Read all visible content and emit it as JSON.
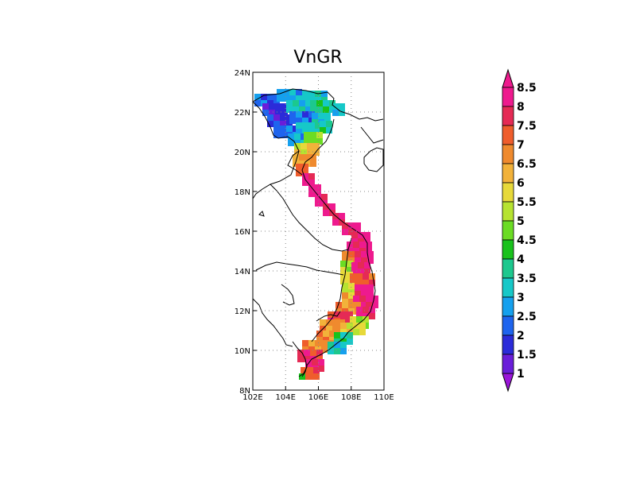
{
  "title": "VnGR",
  "map": {
    "lon_range": [
      102,
      110
    ],
    "lat_range": [
      8,
      24
    ],
    "x_ticks": [
      {
        "value": 102,
        "label": "102E"
      },
      {
        "value": 104,
        "label": "104E"
      },
      {
        "value": 106,
        "label": "106E"
      },
      {
        "value": 108,
        "label": "108E"
      },
      {
        "value": 110,
        "label": "110E"
      }
    ],
    "y_ticks": [
      {
        "value": 8,
        "label": "8N"
      },
      {
        "value": 10,
        "label": "10N"
      },
      {
        "value": 12,
        "label": "12N"
      },
      {
        "value": 14,
        "label": "14N"
      },
      {
        "value": 16,
        "label": "16N"
      },
      {
        "value": 18,
        "label": "18N"
      },
      {
        "value": 20,
        "label": "20N"
      },
      {
        "value": 22,
        "label": "22N"
      },
      {
        "value": 24,
        "label": "24N"
      }
    ],
    "gridlines": "dotted"
  },
  "colorbar": {
    "levels": [
      "1",
      "1.5",
      "2",
      "2.5",
      "3",
      "3.5",
      "4",
      "4.5",
      "5",
      "5.5",
      "6",
      "6.5",
      "7",
      "7.5",
      "8",
      "8.5"
    ],
    "colors": [
      "#9a15d9",
      "#6a1dd9",
      "#2b2bd9",
      "#1e64ee",
      "#15a0ee",
      "#16c8c8",
      "#1cc88e",
      "#19c21c",
      "#6bdc24",
      "#b6e331",
      "#e7d93a",
      "#f2b23a",
      "#ef8a2e",
      "#ef5d2c",
      "#e52a55",
      "#ee1a8e"
    ],
    "low_color": "#9a15d9",
    "high_color": "#ee1a8e"
  }
}
